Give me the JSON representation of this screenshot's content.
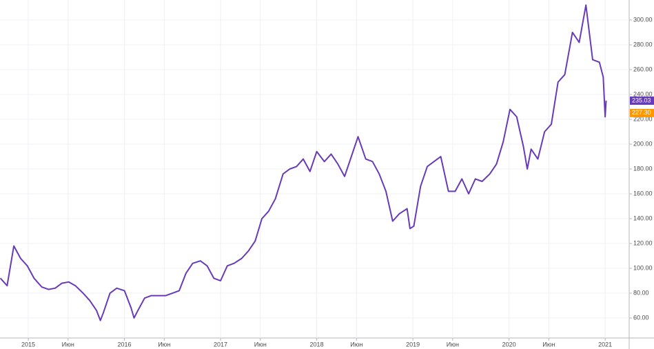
{
  "chart_data": {
    "type": "line",
    "color": "#673ab7",
    "grid": true,
    "x": [
      2014.71,
      2014.78,
      2014.85,
      2014.92,
      2014.99,
      2015.06,
      2015.14,
      2015.21,
      2015.28,
      2015.35,
      2015.42,
      2015.49,
      2015.57,
      2015.64,
      2015.71,
      2015.75,
      2015.78,
      2015.85,
      2015.92,
      2016.0,
      2016.07,
      2016.1,
      2016.14,
      2016.21,
      2016.28,
      2016.36,
      2016.43,
      2016.5,
      2016.57,
      2016.64,
      2016.71,
      2016.79,
      2016.86,
      2016.93,
      2017.0,
      2017.07,
      2017.14,
      2017.22,
      2017.29,
      2017.36,
      2017.43,
      2017.5,
      2017.57,
      2017.65,
      2017.72,
      2017.79,
      2017.86,
      2017.93,
      2018.0,
      2018.08,
      2018.15,
      2018.22,
      2018.29,
      2018.36,
      2018.43,
      2018.51,
      2018.58,
      2018.65,
      2018.72,
      2018.79,
      2018.86,
      2018.94,
      2018.97,
      2019.01,
      2019.08,
      2019.15,
      2019.22,
      2019.29,
      2019.37,
      2019.44,
      2019.51,
      2019.58,
      2019.65,
      2019.72,
      2019.8,
      2019.87,
      2019.94,
      2020.01,
      2020.08,
      2020.15,
      2020.19,
      2020.23,
      2020.3,
      2020.37,
      2020.44,
      2020.51,
      2020.58,
      2020.66,
      2020.73,
      2020.8,
      2020.87,
      2020.94,
      2020.98,
      2021.0,
      2021.01
    ],
    "values": [
      92,
      86,
      118,
      108,
      102,
      92,
      85,
      83,
      84,
      88,
      89,
      86,
      80,
      74,
      66,
      58,
      64,
      80,
      84,
      82,
      68,
      60,
      66,
      76,
      78,
      78,
      78,
      80,
      82,
      96,
      104,
      106,
      102,
      92,
      90,
      102,
      104,
      108,
      114,
      122,
      140,
      146,
      156,
      176,
      180,
      182,
      188,
      178,
      194,
      186,
      192,
      184,
      174,
      190,
      206,
      188,
      186,
      176,
      162,
      138,
      144,
      148,
      132,
      134,
      166,
      182,
      186,
      190,
      162,
      162,
      172,
      160,
      172,
      170,
      176,
      184,
      202,
      228,
      222,
      198,
      180,
      196,
      188,
      210,
      216,
      250,
      256,
      290,
      282,
      312,
      268,
      266,
      254,
      222,
      235
    ],
    "xlim": [
      2014.706,
      2021.25
    ],
    "xticks": [
      2015,
      {
        "value": 2015.414,
        "label": "Июн"
      },
      2016,
      {
        "value": 2016.414,
        "label": "Июн"
      },
      2017,
      {
        "value": 2017.414,
        "label": "Июн"
      },
      2018,
      {
        "value": 2018.414,
        "label": "Июн"
      },
      2019,
      {
        "value": 2019.414,
        "label": "Июн"
      },
      2020,
      {
        "value": 2020.414,
        "label": "Июн"
      },
      2021
    ],
    "ylim": [
      43.9,
      316.1
    ],
    "yticks": [
      {
        "value": 60,
        "label": "60.00"
      },
      {
        "value": 80,
        "label": "80.00"
      },
      {
        "value": 100,
        "label": "100.00"
      },
      {
        "value": 120,
        "label": "120.00"
      },
      {
        "value": 140,
        "label": "140.00"
      },
      {
        "value": 160,
        "label": "160.00"
      },
      {
        "value": 180,
        "label": "180.00"
      },
      {
        "value": 200,
        "label": "200.00"
      },
      {
        "value": 220,
        "label": "220.00"
      },
      {
        "value": 240,
        "label": "240.00"
      },
      {
        "value": 260,
        "label": "260.00"
      },
      {
        "value": 280,
        "label": "280.00"
      },
      {
        "value": 300,
        "label": "300.00"
      }
    ],
    "price_labels": [
      {
        "value": 235.03,
        "color": "#673ab7"
      },
      {
        "value": 227.3,
        "label": "227.30",
        "color": "#ff9800"
      }
    ]
  }
}
